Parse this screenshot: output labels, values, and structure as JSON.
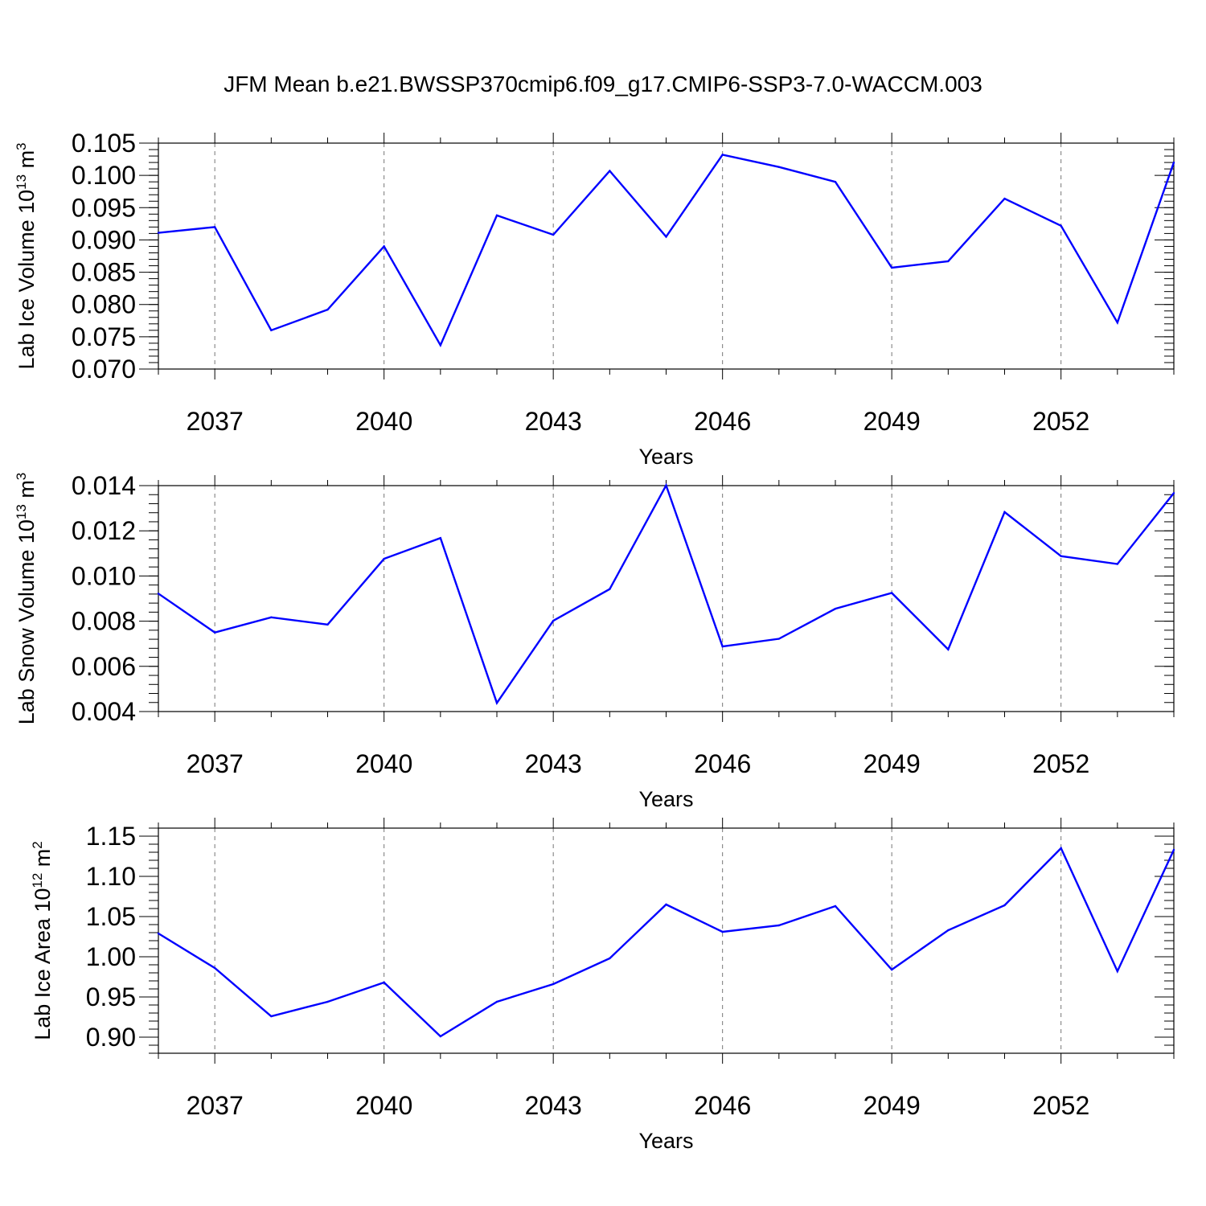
{
  "title": "JFM Mean b.e21.BWSSP370cmip6.f09_g17.CMIP6-SSP3-7.0-WACCM.003",
  "colors": {
    "line": "#0000ff",
    "axis": "#000000",
    "grid": "#777777"
  },
  "chart_data": [
    {
      "type": "line",
      "ylabel_main": "Lab Ice Volume 10",
      "ylabel_exp": "13",
      "ylabel_unit": " m",
      "ylabel_unit_exp": "3",
      "xlabel": "Years",
      "xlim": [
        2036,
        2054
      ],
      "ylim": [
        0.07,
        0.105
      ],
      "grid": "x-dashed",
      "x_ticks": [
        "2037",
        "2040",
        "2043",
        "2046",
        "2049",
        "2052"
      ],
      "y_ticks": [
        "0.070",
        "0.075",
        "0.080",
        "0.085",
        "0.090",
        "0.095",
        "0.100",
        "0.105"
      ],
      "x": [
        2036,
        2037,
        2038,
        2039,
        2040,
        2041,
        2042,
        2043,
        2044,
        2045,
        2046,
        2047,
        2048,
        2049,
        2050,
        2051,
        2052,
        2053,
        2054
      ],
      "values": [
        0.0911,
        0.092,
        0.076,
        0.0792,
        0.089,
        0.0737,
        0.0938,
        0.0908,
        0.1007,
        0.0905,
        0.1032,
        0.1013,
        0.099,
        0.0857,
        0.0867,
        0.0964,
        0.0922,
        0.0772,
        0.102
      ]
    },
    {
      "type": "line",
      "ylabel_main": "Lab Snow Volume 10",
      "ylabel_exp": "13",
      "ylabel_unit": " m",
      "ylabel_unit_exp": "3",
      "xlabel": "Years",
      "xlim": [
        2036,
        2054
      ],
      "ylim": [
        0.004,
        0.014
      ],
      "grid": "x-dashed",
      "x_ticks": [
        "2037",
        "2040",
        "2043",
        "2046",
        "2049",
        "2052"
      ],
      "y_ticks": [
        "0.004",
        "0.006",
        "0.008",
        "0.010",
        "0.012",
        "0.014"
      ],
      "x": [
        2036,
        2037,
        2038,
        2039,
        2040,
        2041,
        2042,
        2043,
        2044,
        2045,
        2046,
        2047,
        2048,
        2049,
        2050,
        2051,
        2052,
        2053,
        2054
      ],
      "values": [
        0.00922,
        0.0075,
        0.00817,
        0.00785,
        0.01076,
        0.01168,
        0.00438,
        0.00802,
        0.00942,
        0.01401,
        0.00688,
        0.00722,
        0.00855,
        0.00925,
        0.00675,
        0.01283,
        0.01088,
        0.01053,
        0.01367
      ]
    },
    {
      "type": "line",
      "ylabel_main": "Lab Ice Area 10",
      "ylabel_exp": "12",
      "ylabel_unit": " m",
      "ylabel_unit_exp": "2",
      "xlabel": "Years",
      "xlim": [
        2036,
        2054
      ],
      "ylim": [
        0.88,
        1.16
      ],
      "grid": "x-dashed",
      "x_ticks": [
        "2037",
        "2040",
        "2043",
        "2046",
        "2049",
        "2052"
      ],
      "y_ticks": [
        "0.90",
        "0.95",
        "1.00",
        "1.05",
        "1.10",
        "1.15"
      ],
      "x": [
        2036,
        2037,
        2038,
        2039,
        2040,
        2041,
        2042,
        2043,
        2044,
        2045,
        2046,
        2047,
        2048,
        2049,
        2050,
        2051,
        2052,
        2053,
        2054
      ],
      "values": [
        1.029,
        0.986,
        0.926,
        0.944,
        0.968,
        0.901,
        0.944,
        0.966,
        0.998,
        1.065,
        1.031,
        1.039,
        1.063,
        0.984,
        1.033,
        1.064,
        1.135,
        0.982,
        1.133
      ]
    }
  ]
}
